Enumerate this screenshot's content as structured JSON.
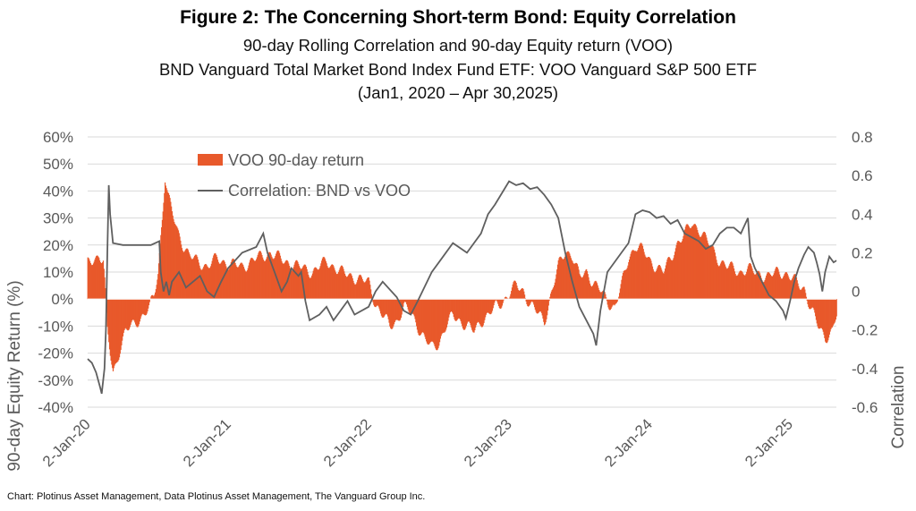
{
  "header": {
    "title": "Figure 2: The Concerning Short-term Bond: Equity Correlation",
    "subtitle1": "90-day Rolling Correlation and 90-day Equity return (VOO)",
    "subtitle2": "BND Vanguard Total Market Bond Index Fund ETF: VOO Vanguard S&P 500 ETF",
    "subtitle3": "(Jan1, 2020 – Apr 30,2025)"
  },
  "footer": {
    "source": "Chart: Plotinus Asset Management, Data Plotinus Asset Management, The Vanguard Group Inc."
  },
  "colors": {
    "bars": "#e8592b",
    "line": "#5f5f5f",
    "grid": "#d9d9d9",
    "axis_text": "#595959"
  },
  "chart_data": {
    "type": "bar+line",
    "xlabel": "",
    "ylabel": "90-day Equity Return (%)",
    "y2label": "Correlation",
    "ylim": [
      -40,
      60
    ],
    "yticks": [
      -40,
      -30,
      -20,
      -10,
      0,
      10,
      20,
      30,
      40,
      50,
      60
    ],
    "ytick_labels": [
      "-40%",
      "-30%",
      "-20%",
      "-10%",
      "0%",
      "10%",
      "20%",
      "30%",
      "40%",
      "50%",
      "60%"
    ],
    "y2lim": [
      -0.6,
      0.8
    ],
    "y2ticks": [
      -0.6,
      -0.4,
      -0.2,
      0,
      0.2,
      0.4,
      0.6,
      0.8
    ],
    "y2tick_labels": [
      "-0.6",
      "-0.4",
      "-0.2",
      "0",
      "0.2",
      "0.4",
      "0.6",
      "0.8"
    ],
    "xlim": [
      2020.0,
      2025.33
    ],
    "xticks": [
      2020.0,
      2021.0,
      2022.0,
      2023.0,
      2024.0,
      2025.0
    ],
    "xtick_labels": [
      "2-Jan-20",
      "2-Jan-21",
      "2-Jan-22",
      "2-Jan-23",
      "2-Jan-24",
      "2-Jan-25"
    ],
    "legend_position": "top-left",
    "series": [
      {
        "name": "VOO 90-day return",
        "kind": "bar",
        "axis": "left",
        "points": [
          [
            2020.0,
            13
          ],
          [
            2020.04,
            15
          ],
          [
            2020.08,
            16
          ],
          [
            2020.11,
            14
          ],
          [
            2020.12,
            6
          ],
          [
            2020.14,
            -12
          ],
          [
            2020.16,
            -20
          ],
          [
            2020.18,
            -27
          ],
          [
            2020.2,
            -24
          ],
          [
            2020.23,
            -18
          ],
          [
            2020.27,
            -12
          ],
          [
            2020.31,
            -10
          ],
          [
            2020.35,
            -8
          ],
          [
            2020.4,
            -6
          ],
          [
            2020.44,
            -3
          ],
          [
            2020.47,
            1
          ],
          [
            2020.5,
            10
          ],
          [
            2020.53,
            30
          ],
          [
            2020.55,
            45
          ],
          [
            2020.57,
            38
          ],
          [
            2020.6,
            32
          ],
          [
            2020.64,
            25
          ],
          [
            2020.68,
            20
          ],
          [
            2020.72,
            16
          ],
          [
            2020.78,
            14
          ],
          [
            2020.85,
            12
          ],
          [
            2020.92,
            15
          ],
          [
            2021.0,
            13
          ],
          [
            2021.1,
            12
          ],
          [
            2021.2,
            15
          ],
          [
            2021.3,
            17
          ],
          [
            2021.4,
            14
          ],
          [
            2021.5,
            12
          ],
          [
            2021.6,
            10
          ],
          [
            2021.7,
            14
          ],
          [
            2021.8,
            10
          ],
          [
            2021.9,
            8
          ],
          [
            2022.0,
            6
          ],
          [
            2022.05,
            -2
          ],
          [
            2022.1,
            -6
          ],
          [
            2022.15,
            -10
          ],
          [
            2022.2,
            -8
          ],
          [
            2022.25,
            -3
          ],
          [
            2022.3,
            -5
          ],
          [
            2022.35,
            -10
          ],
          [
            2022.4,
            -15
          ],
          [
            2022.45,
            -18
          ],
          [
            2022.5,
            -16
          ],
          [
            2022.55,
            -10
          ],
          [
            2022.6,
            -6
          ],
          [
            2022.65,
            -8
          ],
          [
            2022.7,
            -10
          ],
          [
            2022.75,
            -12
          ],
          [
            2022.8,
            -8
          ],
          [
            2022.85,
            -6
          ],
          [
            2022.9,
            -3
          ],
          [
            2022.95,
            -1
          ],
          [
            2023.0,
            2
          ],
          [
            2023.05,
            5
          ],
          [
            2023.1,
            3
          ],
          [
            2023.15,
            -2
          ],
          [
            2023.2,
            -5
          ],
          [
            2023.25,
            -8
          ],
          [
            2023.3,
            2
          ],
          [
            2023.35,
            12
          ],
          [
            2023.4,
            18
          ],
          [
            2023.45,
            16
          ],
          [
            2023.5,
            8
          ],
          [
            2023.55,
            10
          ],
          [
            2023.6,
            6
          ],
          [
            2023.65,
            3
          ],
          [
            2023.7,
            -1
          ],
          [
            2023.75,
            -3
          ],
          [
            2023.8,
            5
          ],
          [
            2023.85,
            15
          ],
          [
            2023.9,
            20
          ],
          [
            2023.95,
            18
          ],
          [
            2024.0,
            14
          ],
          [
            2024.05,
            12
          ],
          [
            2024.1,
            10
          ],
          [
            2024.15,
            15
          ],
          [
            2024.2,
            21
          ],
          [
            2024.25,
            24
          ],
          [
            2024.3,
            28
          ],
          [
            2024.35,
            26
          ],
          [
            2024.4,
            22
          ],
          [
            2024.45,
            18
          ],
          [
            2024.5,
            14
          ],
          [
            2024.55,
            12
          ],
          [
            2024.6,
            11
          ],
          [
            2024.65,
            10
          ],
          [
            2024.7,
            11
          ],
          [
            2024.75,
            10
          ],
          [
            2024.8,
            9
          ],
          [
            2024.85,
            8
          ],
          [
            2024.9,
            10
          ],
          [
            2024.95,
            10
          ],
          [
            2025.0,
            8
          ],
          [
            2025.05,
            6
          ],
          [
            2025.1,
            4
          ],
          [
            2025.15,
            -4
          ],
          [
            2025.2,
            -10
          ],
          [
            2025.25,
            -14
          ],
          [
            2025.3,
            -12
          ],
          [
            2025.33,
            -6
          ]
        ]
      },
      {
        "name": "Correlation: BND vs VOO",
        "kind": "line",
        "axis": "right",
        "points": [
          [
            2020.0,
            -0.35
          ],
          [
            2020.03,
            -0.37
          ],
          [
            2020.06,
            -0.42
          ],
          [
            2020.09,
            -0.5
          ],
          [
            2020.1,
            -0.53
          ],
          [
            2020.12,
            -0.4
          ],
          [
            2020.13,
            -0.2
          ],
          [
            2020.14,
            0.2
          ],
          [
            2020.15,
            0.55
          ],
          [
            2020.16,
            0.4
          ],
          [
            2020.18,
            0.25
          ],
          [
            2020.25,
            0.24
          ],
          [
            2020.35,
            0.24
          ],
          [
            2020.45,
            0.24
          ],
          [
            2020.51,
            0.26
          ],
          [
            2020.52,
            0.1
          ],
          [
            2020.54,
            0.0
          ],
          [
            2020.56,
            0.05
          ],
          [
            2020.58,
            -0.02
          ],
          [
            2020.6,
            0.05
          ],
          [
            2020.65,
            0.1
          ],
          [
            2020.7,
            0.02
          ],
          [
            2020.75,
            0.05
          ],
          [
            2020.8,
            0.08
          ],
          [
            2020.85,
            0.0
          ],
          [
            2020.9,
            -0.03
          ],
          [
            2020.95,
            0.05
          ],
          [
            2021.0,
            0.12
          ],
          [
            2021.1,
            0.2
          ],
          [
            2021.2,
            0.23
          ],
          [
            2021.25,
            0.3
          ],
          [
            2021.28,
            0.2
          ],
          [
            2021.33,
            0.1
          ],
          [
            2021.38,
            0.0
          ],
          [
            2021.42,
            0.05
          ],
          [
            2021.45,
            0.12
          ],
          [
            2021.5,
            0.08
          ],
          [
            2021.52,
            0.1
          ],
          [
            2021.55,
            -0.05
          ],
          [
            2021.58,
            -0.15
          ],
          [
            2021.65,
            -0.12
          ],
          [
            2021.7,
            -0.08
          ],
          [
            2021.75,
            -0.15
          ],
          [
            2021.8,
            -0.1
          ],
          [
            2021.85,
            -0.05
          ],
          [
            2021.9,
            -0.12
          ],
          [
            2022.0,
            -0.08
          ],
          [
            2022.05,
            0.0
          ],
          [
            2022.1,
            0.05
          ],
          [
            2022.2,
            -0.03
          ],
          [
            2022.25,
            -0.1
          ],
          [
            2022.3,
            -0.12
          ],
          [
            2022.35,
            -0.05
          ],
          [
            2022.45,
            0.1
          ],
          [
            2022.5,
            0.15
          ],
          [
            2022.6,
            0.25
          ],
          [
            2022.7,
            0.2
          ],
          [
            2022.8,
            0.3
          ],
          [
            2022.85,
            0.4
          ],
          [
            2022.9,
            0.45
          ],
          [
            2023.0,
            0.57
          ],
          [
            2023.05,
            0.55
          ],
          [
            2023.1,
            0.56
          ],
          [
            2023.15,
            0.53
          ],
          [
            2023.2,
            0.54
          ],
          [
            2023.25,
            0.5
          ],
          [
            2023.3,
            0.45
          ],
          [
            2023.35,
            0.38
          ],
          [
            2023.4,
            0.2
          ],
          [
            2023.45,
            0.05
          ],
          [
            2023.5,
            -0.08
          ],
          [
            2023.55,
            -0.15
          ],
          [
            2023.6,
            -0.22
          ],
          [
            2023.62,
            -0.28
          ],
          [
            2023.65,
            -0.1
          ],
          [
            2023.7,
            0.1
          ],
          [
            2023.8,
            0.2
          ],
          [
            2023.85,
            0.25
          ],
          [
            2023.9,
            0.4
          ],
          [
            2023.95,
            0.42
          ],
          [
            2024.0,
            0.41
          ],
          [
            2024.05,
            0.38
          ],
          [
            2024.1,
            0.39
          ],
          [
            2024.15,
            0.35
          ],
          [
            2024.2,
            0.37
          ],
          [
            2024.25,
            0.3
          ],
          [
            2024.3,
            0.28
          ],
          [
            2024.35,
            0.26
          ],
          [
            2024.4,
            0.22
          ],
          [
            2024.45,
            0.24
          ],
          [
            2024.5,
            0.3
          ],
          [
            2024.55,
            0.33
          ],
          [
            2024.6,
            0.33
          ],
          [
            2024.65,
            0.3
          ],
          [
            2024.7,
            0.38
          ],
          [
            2024.72,
            0.18
          ],
          [
            2024.75,
            0.12
          ],
          [
            2024.8,
            0.05
          ],
          [
            2024.85,
            -0.02
          ],
          [
            2024.9,
            -0.05
          ],
          [
            2024.95,
            -0.1
          ],
          [
            2024.97,
            -0.14
          ],
          [
            2025.0,
            -0.05
          ],
          [
            2025.03,
            0.05
          ],
          [
            2025.06,
            0.12
          ],
          [
            2025.1,
            0.19
          ],
          [
            2025.13,
            0.23
          ],
          [
            2025.17,
            0.2
          ],
          [
            2025.19,
            0.15
          ],
          [
            2025.21,
            0.09
          ],
          [
            2025.23,
            0.0
          ],
          [
            2025.25,
            0.1
          ],
          [
            2025.28,
            0.18
          ],
          [
            2025.31,
            0.15
          ],
          [
            2025.33,
            0.16
          ]
        ]
      }
    ]
  }
}
